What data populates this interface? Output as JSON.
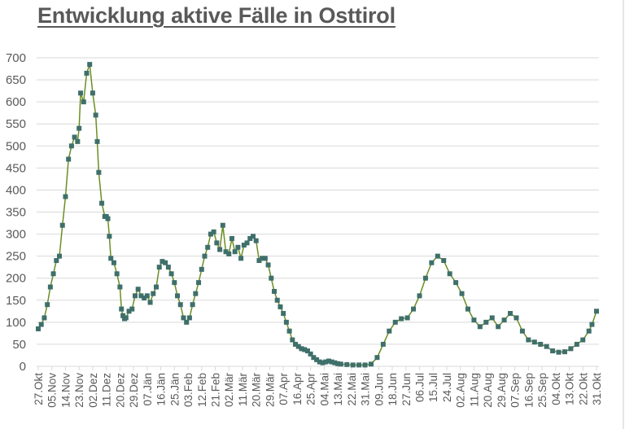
{
  "title": "Entwicklung aktive Fälle in Osttirol",
  "colors": {
    "line": "#6b8e23",
    "marker": "#3f6f6b",
    "grid": "#d9d9d9",
    "text": "#595959"
  },
  "chart_data": {
    "type": "line",
    "title": "Entwicklung aktive Fälle in Osttirol",
    "xlabel": "",
    "ylabel": "",
    "ylim": [
      0,
      700
    ],
    "yticks": [
      0,
      50,
      100,
      150,
      200,
      250,
      300,
      350,
      400,
      450,
      500,
      550,
      600,
      650,
      700
    ],
    "grid": true,
    "legend": "none",
    "categories": [
      "27.Okt",
      "05.Nov",
      "14.Nov",
      "23.Nov",
      "02.Dez",
      "11.Dez",
      "20.Dez",
      "29.Dez",
      "07.Jän",
      "16.Jän",
      "25.Jän",
      "03.Feb",
      "12.Feb",
      "21.Feb",
      "02.Mär",
      "11.Mär",
      "20.Mär",
      "29.Mär",
      "07.Apr",
      "16.Apr",
      "25.Apr",
      "04.Mai",
      "13.Mai",
      "22.Mai",
      "31.Mai",
      "09.Jun",
      "18.Jun",
      "27.Jun",
      "06.Jul",
      "15.Jul",
      "24.Jul",
      "02.Aug",
      "11.Aug",
      "20.Aug",
      "29.Aug",
      "07.Sep",
      "16.Sep",
      "25.Sep",
      "04.Okt",
      "13.Okt",
      "22.Okt",
      "31.Okt"
    ],
    "series": [
      {
        "name": "Aktive Fälle",
        "day_offset_from_27Okt": [
          0,
          2,
          4,
          6,
          8,
          10,
          12,
          14,
          16,
          18,
          20,
          22,
          24,
          26,
          27,
          28,
          30,
          32,
          34,
          36,
          38,
          39,
          40,
          42,
          44,
          45,
          46,
          47,
          48,
          50,
          52,
          54,
          55,
          56,
          57,
          58,
          60,
          62,
          64,
          66,
          68,
          70,
          72,
          74,
          76,
          78,
          80,
          82,
          84,
          86,
          88,
          90,
          92,
          94,
          96,
          98,
          100,
          102,
          104,
          106,
          108,
          110,
          112,
          114,
          116,
          118,
          120,
          122,
          124,
          126,
          128,
          130,
          132,
          134,
          136,
          138,
          140,
          142,
          144,
          146,
          148,
          150,
          152,
          154,
          156,
          158,
          160,
          162,
          164,
          166,
          168,
          170,
          172,
          174,
          176,
          178,
          180,
          182,
          184,
          186,
          188,
          190,
          192,
          194,
          196,
          198,
          200,
          204,
          208,
          212,
          216,
          220,
          224,
          228,
          232,
          236,
          240,
          244,
          248,
          252,
          256,
          260,
          264,
          268,
          272,
          276,
          280,
          284,
          288,
          292,
          296,
          300,
          304,
          308,
          312,
          316,
          320,
          324,
          328,
          332,
          336,
          340,
          344,
          348,
          352,
          356,
          360,
          364,
          366,
          369
        ],
        "values": [
          85,
          95,
          110,
          140,
          180,
          210,
          240,
          250,
          320,
          385,
          470,
          500,
          520,
          510,
          540,
          620,
          600,
          665,
          685,
          620,
          570,
          510,
          440,
          370,
          340,
          340,
          335,
          295,
          245,
          235,
          210,
          180,
          130,
          115,
          108,
          110,
          125,
          130,
          160,
          175,
          160,
          155,
          160,
          145,
          165,
          180,
          225,
          238,
          235,
          225,
          210,
          190,
          160,
          140,
          110,
          100,
          110,
          140,
          165,
          190,
          220,
          250,
          270,
          300,
          305,
          280,
          265,
          320,
          260,
          255,
          290,
          260,
          270,
          245,
          275,
          280,
          290,
          295,
          285,
          240,
          245,
          245,
          230,
          200,
          170,
          150,
          135,
          120,
          100,
          80,
          60,
          50,
          45,
          40,
          38,
          35,
          28,
          20,
          15,
          10,
          8,
          10,
          12,
          10,
          8,
          6,
          5,
          4,
          3,
          3,
          3,
          5,
          20,
          50,
          80,
          100,
          108,
          110,
          130,
          160,
          200,
          235,
          250,
          240,
          210,
          190,
          165,
          130,
          105,
          90,
          100,
          110,
          90,
          105,
          120,
          110,
          80,
          60,
          55,
          50,
          45,
          35,
          32,
          33,
          40,
          50,
          60,
          80,
          95,
          125
        ]
      }
    ]
  }
}
